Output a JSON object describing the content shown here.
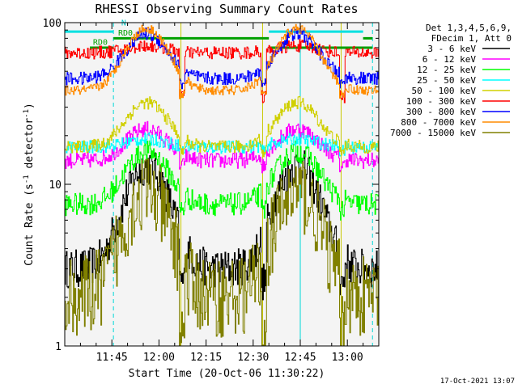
{
  "chart_data": {
    "type": "line",
    "title": "RHESSI Observing Summary Count Rates",
    "xlabel": "Start Time (20-Oct-06 11:30:22)",
    "ylabel_main": "Count Rate (s",
    "ylabel_sup": "-1",
    "ylabel_tail": " detector",
    "ylabel_sup2": "-1",
    "ylabel_close": ")",
    "y_scale": "log",
    "ylim": [
      1,
      100
    ],
    "xlim_minutes": [
      0,
      100
    ],
    "x_ticks": [
      {
        "minute": 15,
        "label": "11:45"
      },
      {
        "minute": 30,
        "label": "12:00"
      },
      {
        "minute": 45,
        "label": "12:15"
      },
      {
        "minute": 60,
        "label": "12:30"
      },
      {
        "minute": 75,
        "label": "12:45"
      },
      {
        "minute": 90,
        "label": "13:00"
      }
    ],
    "y_ticks": [
      {
        "value": 1,
        "label": "1"
      },
      {
        "value": 10,
        "label": "10"
      },
      {
        "value": 100,
        "label": "100"
      }
    ],
    "legend_header": [
      "Det 1,3,4,5,6,9,",
      "FDecim 1, Att 0"
    ],
    "legend_placement": "right",
    "footer": "17-Oct-2021 13:07",
    "annotations": [
      {
        "text": "N",
        "minute": 18,
        "value": 96,
        "color": "#00c8c8"
      },
      {
        "text": "RD0",
        "minute": 17,
        "value": 83,
        "color": "#00a000"
      },
      {
        "text": "RD0",
        "minute": 9,
        "value": 73,
        "color": "#00a000"
      }
    ],
    "night_intervals": [
      [
        0,
        15.5
      ],
      [
        65,
        100
      ]
    ],
    "saa_levels": [
      {
        "color": "#00e0e0",
        "value": 88,
        "intervals": [
          [
            0,
            15.5
          ],
          [
            65,
            95
          ]
        ]
      },
      {
        "color": "#00a000",
        "value": 80,
        "intervals": [
          [
            15.5,
            65
          ],
          [
            95,
            98
          ]
        ]
      },
      {
        "color": "#00a000",
        "value": 70,
        "intervals": [
          [
            8,
            15.5
          ],
          [
            65,
            98
          ]
        ]
      }
    ],
    "cyan_dashed_lines": [
      15.5,
      98
    ],
    "cyan_solid_lines": [
      0,
      75
    ],
    "yellow_lines": [
      37,
      63,
      88
    ],
    "peak_minutes": [
      26,
      74
    ],
    "series": [
      {
        "name": "3 - 6 keV",
        "color": "#000000",
        "peak": 13,
        "base": 3.0,
        "floor": 2.5,
        "noise": 0.12
      },
      {
        "name": "6 - 12 keV",
        "color": "#ff00ff",
        "peak": 22,
        "base": 14,
        "floor": 13,
        "noise": 0.05
      },
      {
        "name": "12 - 25 keV",
        "color": "#00ff00",
        "peak": 16,
        "base": 7.5,
        "floor": 7,
        "noise": 0.07
      },
      {
        "name": "25 - 50 keV",
        "color": "#00ffff",
        "peak": 19,
        "base": 17,
        "floor": 16,
        "noise": 0.04
      },
      {
        "name": "50 - 100 keV",
        "color": "#d0d000",
        "peak": 32,
        "base": 17,
        "floor": 16,
        "noise": 0.04
      },
      {
        "name": "100 - 300 keV",
        "color": "#ff0000",
        "peak": 72,
        "base": 65,
        "floor": 35,
        "noise": 0.04
      },
      {
        "name": "300 - 800 keV",
        "color": "#0000ff",
        "peak": 85,
        "base": 45,
        "floor": 42,
        "noise": 0.04
      },
      {
        "name": "800 - 7000 keV",
        "color": "#ff8c00",
        "peak": 92,
        "base": 38,
        "floor": 36,
        "noise": 0.03
      },
      {
        "name": "7000 - 15000 keV",
        "color": "#808000",
        "peak": 9,
        "base": 2.0,
        "floor": 1.3,
        "noise": 0.25
      }
    ]
  }
}
